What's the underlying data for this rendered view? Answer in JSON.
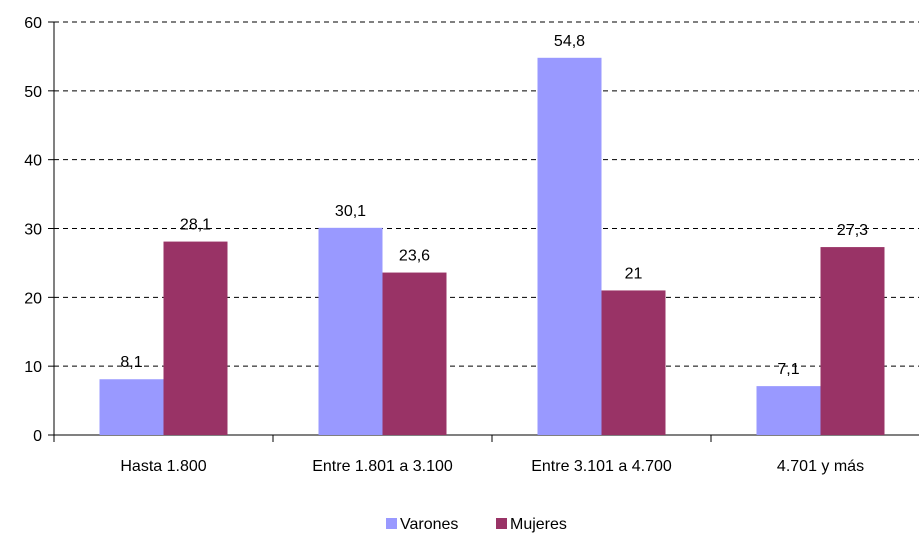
{
  "chart_data": {
    "type": "bar",
    "categories": [
      "Hasta 1.800",
      "Entre 1.801 a 3.100",
      "Entre 3.101 a 4.700",
      "4.701 y más"
    ],
    "series": [
      {
        "name": "Varones",
        "values": [
          8.1,
          30.1,
          54.8,
          7.1
        ],
        "labels": [
          "8,1",
          "30,1",
          "54,8",
          "7,1"
        ],
        "color": "#9999ff"
      },
      {
        "name": "Mujeres",
        "values": [
          28.1,
          23.6,
          21,
          27.3
        ],
        "labels": [
          "28,1",
          "23,6",
          "21",
          "27,3"
        ],
        "color": "#993366"
      }
    ],
    "ylim": [
      0,
      60
    ],
    "yticks": [
      0,
      10,
      20,
      30,
      40,
      50,
      60
    ],
    "grid": true,
    "legend": "bottom"
  }
}
